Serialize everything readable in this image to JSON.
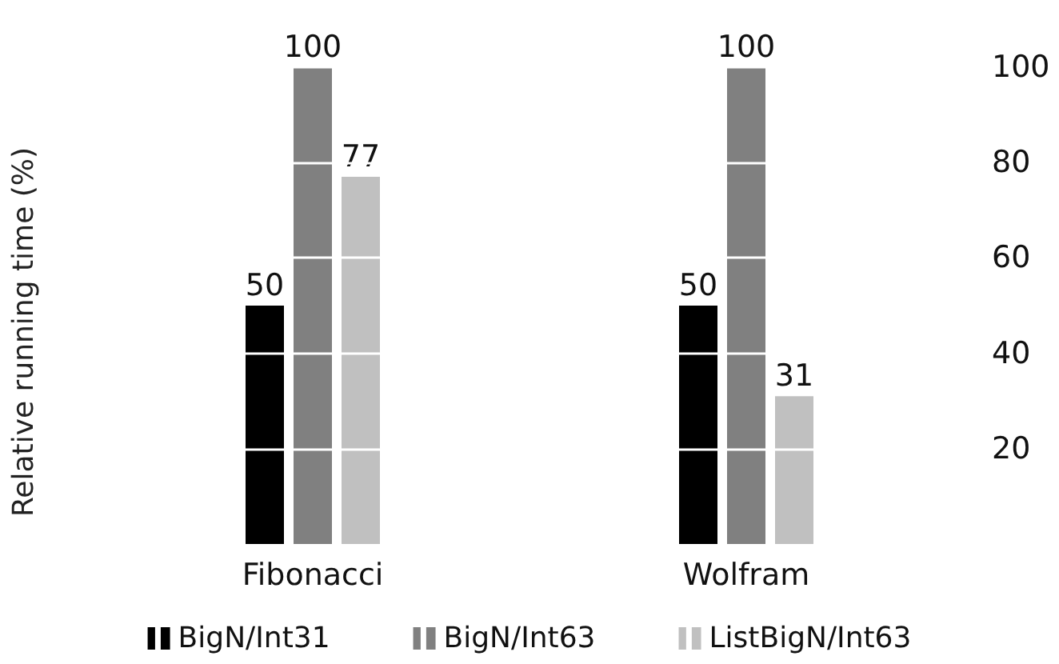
{
  "chart_data": {
    "type": "bar",
    "ylabel": "Relative running time (%)",
    "categories": [
      "Fibonacci",
      "Wolfram"
    ],
    "series": [
      {
        "name": "BigN/Int31",
        "color": "#000000",
        "values": [
          50,
          50
        ]
      },
      {
        "name": "BigN/Int63",
        "color": "#808080",
        "values": [
          100,
          100
        ]
      },
      {
        "name": "ListBigN/Int63",
        "color": "#c0c0c0",
        "values": [
          77,
          31
        ]
      }
    ],
    "ylim": [
      0,
      100
    ],
    "yticks": [
      20,
      40,
      60,
      80,
      100
    ],
    "grid": "y",
    "legend": "bottom",
    "data_labels": true
  }
}
